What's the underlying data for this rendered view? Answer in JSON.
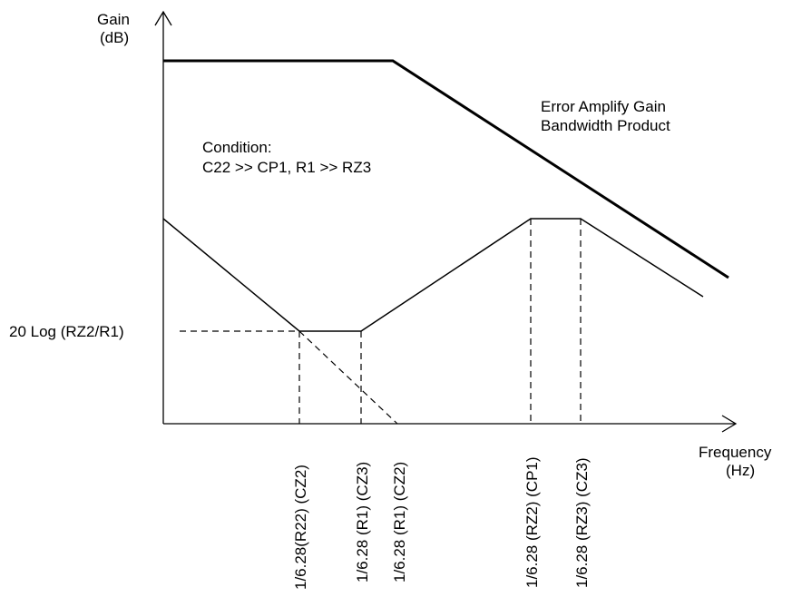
{
  "axes": {
    "y_label_line1": "Gain",
    "y_label_line2": "(dB)",
    "x_label_line1": "Frequency",
    "x_label_line2": "(Hz)"
  },
  "annotations": {
    "gbw_line1": "Error Amplify Gain",
    "gbw_line2": "Bandwidth Product",
    "condition_line1": "Condition:",
    "condition_line2": "C22 >> CP1, R1 >> RZ3",
    "mid_gain": "20 Log (RZ2/R1)"
  },
  "frequency_markers": [
    "1/6.28(R22) (CZ2)",
    "1/6.28 (R1) (CZ3)",
    "1/6.28 (R1) (CZ2)",
    "1/6.28 (RZ2) (CP1)",
    "1/6.28 (RZ3) (CZ3)"
  ],
  "colors": {
    "line": "#000000",
    "background": "#ffffff"
  }
}
